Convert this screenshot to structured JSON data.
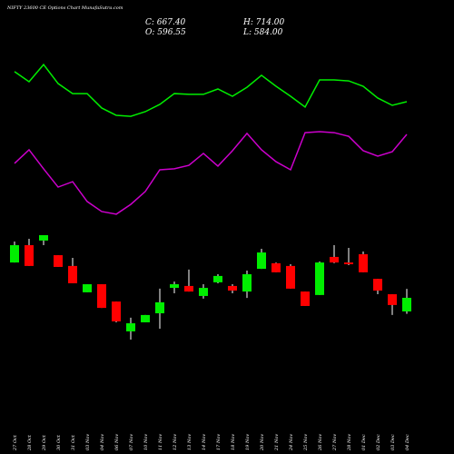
{
  "chart_data": {
    "type": "candlestick",
    "title": "NIFTY 23600  CE Options Chart MunafaSutra.com",
    "header": [
      "C: 667.40",
      "H: 714.00",
      "O: 596.55",
      "L: 584.00"
    ],
    "categories": [
      "27 Oct",
      "28 Oct",
      "29 Oct",
      "30 Oct",
      "31 Oct",
      "03 Nov",
      "04 Nov",
      "06 Nov",
      "07 Nov",
      "10 Nov",
      "11 Nov",
      "12 Nov",
      "13 Nov",
      "14 Nov",
      "17 Nov",
      "18 Nov",
      "19 Nov",
      "20 Nov",
      "21 Nov",
      "24 Nov",
      "25 Nov",
      "26 Nov",
      "27 Nov",
      "28 Nov",
      "01 Dec",
      "02 Dec",
      "03 Dec",
      "04 Dec"
    ],
    "open": [
      851,
      941,
      965,
      889,
      833,
      696,
      738,
      648,
      493,
      540,
      587,
      719,
      729,
      677,
      748,
      729,
      700,
      818,
      847,
      833,
      700,
      682,
      880,
      851,
      894,
      766,
      686,
      596.55
    ],
    "high": [
      960,
      974,
      993,
      889,
      875,
      738,
      738,
      648,
      564,
      578,
      715,
      752,
      814,
      738,
      790,
      738,
      809,
      922,
      851,
      842,
      700,
      856,
      941,
      927,
      908,
      766,
      686,
      714
    ],
    "low": [
      851,
      833,
      941,
      828,
      743,
      696,
      615,
      540,
      450,
      540,
      507,
      691,
      700,
      663,
      743,
      691,
      667,
      818,
      800,
      715,
      625,
      682,
      847,
      837,
      800,
      686,
      578,
      584
    ],
    "close": [
      941,
      833,
      993,
      828,
      743,
      738,
      615,
      545,
      535,
      578,
      644,
      738,
      700,
      719,
      781,
      705,
      790,
      903,
      800,
      715,
      625,
      851,
      851,
      842,
      800,
      705,
      630,
      667.4
    ],
    "up_color": "#00ee00",
    "down_color": "#ff0000",
    "lines": [
      {
        "color": "#00ee00",
        "values": [
          1843,
          1791,
          1880,
          1781,
          1729,
          1729,
          1654,
          1616,
          1611,
          1635,
          1673,
          1729,
          1725,
          1725,
          1753,
          1715,
          1762,
          1824,
          1767,
          1715,
          1659,
          1800,
          1800,
          1795,
          1767,
          1706,
          1668,
          1687
        ]
      },
      {
        "color": "#cc00cc",
        "values": [
          1366,
          1437,
          1338,
          1243,
          1271,
          1168,
          1116,
          1102,
          1153,
          1220,
          1333,
          1338,
          1356,
          1418,
          1352,
          1432,
          1522,
          1437,
          1375,
          1333,
          1526,
          1531,
          1526,
          1507,
          1432,
          1404,
          1427,
          1517
        ]
      }
    ],
    "ylim": [
      -144.5,
      2215.5
    ]
  }
}
